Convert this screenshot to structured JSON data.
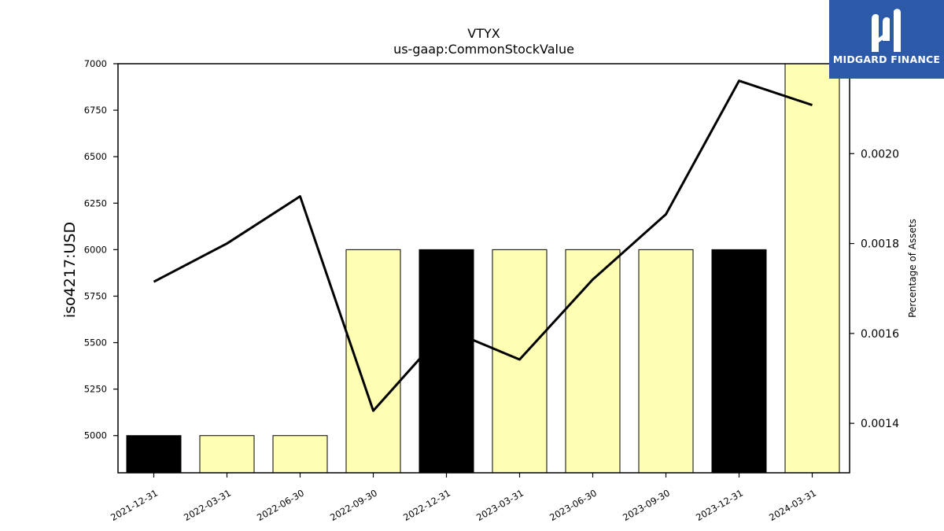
{
  "chart_data": {
    "type": "bar",
    "title": "VTYX",
    "subtitle": "us-gaap:CommonStockValue",
    "ylabel": "iso4217:USD",
    "ylabel_right": "Percentage of Assets",
    "categories": [
      "2021-12-31",
      "2022-03-31",
      "2022-06-30",
      "2022-09-30",
      "2022-12-31",
      "2023-03-31",
      "2023-06-30",
      "2023-09-30",
      "2023-12-31",
      "2024-03-31"
    ],
    "values": [
      5000,
      5000,
      5000,
      6000,
      6000,
      6000,
      6000,
      6000,
      6000,
      7000
    ],
    "bar_colors": [
      "#000000",
      "#ffffb3",
      "#ffffb3",
      "#ffffb3",
      "#000000",
      "#ffffb3",
      "#ffffb3",
      "#ffffb3",
      "#000000",
      "#ffffb3"
    ],
    "ylim": [
      4800,
      7000
    ],
    "yticks": [
      5000,
      5250,
      5500,
      5750,
      6000,
      6250,
      6500,
      6750,
      7000
    ],
    "line_series": {
      "values": [
        0.001715,
        0.0018,
        0.001905,
        0.001428,
        0.00161,
        0.001542,
        0.00172,
        0.001865,
        0.002162,
        0.002108
      ]
    },
    "ylim_right": [
      0.00129,
      0.0022
    ],
    "yticks_right": [
      "0.0014",
      "0.0016",
      "0.0018",
      "0.0020"
    ],
    "grid": false,
    "legend": "none"
  },
  "logo": {
    "text": "MIDGARD FINANCE"
  }
}
